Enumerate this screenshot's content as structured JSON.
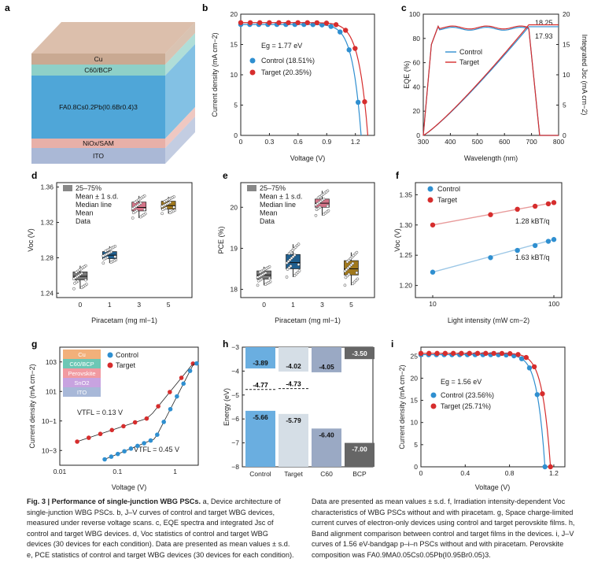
{
  "labels": {
    "a": "a",
    "b": "b",
    "c": "c",
    "d": "d",
    "e": "e",
    "f": "f",
    "g": "g",
    "h": "h",
    "i": "i"
  },
  "device": {
    "layers": [
      "Cu",
      "C60/BCP",
      "FA0.8Cs0.2Pb(I0.6Br0.4)3",
      "NiOx/SAM",
      "ITO"
    ],
    "colors": [
      "#c9a992",
      "#8ed0c8",
      "#4fa6d8",
      "#e8b0a8",
      "#aab8d6"
    ]
  },
  "chart_b": {
    "type": "line",
    "ylabel": "Current density (mA cm−2)",
    "xlabel": "Voltage (V)",
    "note": "Eg = 1.77 eV",
    "legend": [
      "Control (18.51%)",
      "Target (20.35%)"
    ],
    "x_ticks": [
      "0",
      "0.3",
      "0.6",
      "0.9",
      "1.2"
    ],
    "y_ticks": [
      "0",
      "5",
      "10",
      "15",
      "20"
    ],
    "series": [
      {
        "name": "Control",
        "color": "#2f8fd0",
        "jsc": 18.3,
        "voc": 1.26
      },
      {
        "name": "Target",
        "color": "#d62d2d",
        "jsc": 18.6,
        "voc": 1.33
      }
    ]
  },
  "chart_c": {
    "type": "line",
    "ylabel": "EQE (%)",
    "y2label": "Integrated Jsc (mA cm−2)",
    "xlabel": "Wavelength (nm)",
    "legend": [
      "Control",
      "Target"
    ],
    "annot": [
      "18.25",
      "17.93"
    ],
    "x_ticks": [
      "300",
      "400",
      "500",
      "600",
      "700",
      "800"
    ],
    "y_ticks": [
      "0",
      "20",
      "40",
      "60",
      "80",
      "100"
    ],
    "y2_ticks": [
      "0",
      "5",
      "10",
      "15",
      "20"
    ]
  },
  "chart_d": {
    "type": "box",
    "ylabel": "Voc (V)",
    "xlabel": "Piracetam (mg ml−1)",
    "categories": [
      "0",
      "1",
      "3",
      "5"
    ],
    "medians": [
      1.259,
      1.283,
      1.337,
      1.339
    ],
    "q1": [
      1.255,
      1.279,
      1.333,
      1.335
    ],
    "q3": [
      1.264,
      1.287,
      1.343,
      1.344
    ],
    "whisk_lo": [
      1.245,
      1.274,
      1.325,
      1.33
    ],
    "whisk_hi": [
      1.271,
      1.293,
      1.35,
      1.349
    ],
    "colors": [
      "#7a7a7a",
      "#1f5f8f",
      "#d47488",
      "#a0781c"
    ],
    "y_ticks": [
      "1.24",
      "1.28",
      "1.32",
      "1.36"
    ],
    "legend": [
      "25–75%",
      "Mean ± 1 s.d.",
      "Median line",
      "Mean",
      "Data"
    ]
  },
  "chart_e": {
    "type": "box",
    "ylabel": "PCE (%)",
    "xlabel": "Piracetam (mg ml−1)",
    "categories": [
      "0",
      "1",
      "3",
      "5"
    ],
    "medians": [
      18.35,
      18.65,
      20.1,
      18.5
    ],
    "q1": [
      18.25,
      18.5,
      20.0,
      18.35
    ],
    "q3": [
      18.45,
      18.85,
      20.2,
      18.7
    ],
    "whisk_lo": [
      18.1,
      18.3,
      19.8,
      18.1
    ],
    "whisk_hi": [
      18.55,
      19.1,
      20.4,
      18.9
    ],
    "colors": [
      "#7a7a7a",
      "#1f5f8f",
      "#d47488",
      "#a0781c"
    ],
    "y_ticks": [
      "18",
      "19",
      "20"
    ],
    "legend": [
      "25–75%",
      "Mean ± 1 s.d.",
      "Median line",
      "Mean",
      "Data"
    ]
  },
  "chart_f": {
    "type": "scatter",
    "ylabel": "Voc (V)",
    "xlabel": "Light intensity (mW cm−2)",
    "legend": [
      "Control",
      "Target"
    ],
    "annot": [
      "1.28 kBT/q",
      "1.63 kBT/q"
    ],
    "x_ticks": [
      "10",
      "100"
    ],
    "y_ticks": [
      "1.20",
      "1.25",
      "1.30",
      "1.35"
    ],
    "x": [
      10,
      20,
      30,
      40,
      50,
      60,
      70,
      80,
      90,
      100
    ],
    "series": [
      {
        "name": "Control",
        "values": [
          1.222,
          1.237,
          1.246,
          1.253,
          1.258,
          1.262,
          1.266,
          1.27,
          1.273,
          1.276
        ]
      },
      {
        "name": "Target",
        "values": [
          1.3,
          1.311,
          1.317,
          1.322,
          1.326,
          1.329,
          1.331,
          1.333,
          1.335,
          1.337
        ]
      }
    ]
  },
  "chart_g": {
    "type": "scatter",
    "ylabel": "Current density (mA cm−2)",
    "xlabel": "Voltage (V)",
    "legend": [
      "Control",
      "Target"
    ],
    "annot": [
      "VTFL = 0.13 V",
      "VTFL = 0.45 V"
    ],
    "stack": [
      "Cu",
      "C60/BCP",
      "Perovskite",
      "SnO2",
      "ITO"
    ],
    "x_ticks": [
      "0.01",
      "0.1",
      "1"
    ],
    "y_ticks": [
      "10−3",
      "10−1",
      "101",
      "103"
    ]
  },
  "chart_h": {
    "type": "bar",
    "ylabel": "Energy (eV)",
    "categories": [
      "Control",
      "Target",
      "C60",
      "BCP"
    ],
    "cbm": [
      -3.89,
      -4.02,
      -4.05,
      -3.5
    ],
    "vbm": [
      -5.66,
      -5.79,
      -6.4,
      -7.0
    ],
    "fermi": [
      -4.77,
      -4.73
    ],
    "labels": [
      "-3.89",
      "-4.02",
      "-4.05",
      "-3.50",
      "-5.66",
      "-5.79",
      "-6.40",
      "-7.00",
      "-4.77",
      "-4.73"
    ],
    "y_ticks": [
      "−3",
      "−4",
      "−5",
      "−6",
      "−7",
      "−8"
    ]
  },
  "chart_i": {
    "type": "line",
    "ylabel": "Current density (mA cm−2)",
    "xlabel": "Voltage (V)",
    "note": "Eg = 1.56 eV",
    "legend": [
      "Control (23.56%)",
      "Target (25.71%)"
    ],
    "x_ticks": [
      "0",
      "0.4",
      "0.8",
      "1.2"
    ],
    "y_ticks": [
      "0",
      "5",
      "10",
      "15",
      "20",
      "25"
    ],
    "series": [
      {
        "name": "Control",
        "color": "#2f8fd0",
        "jsc": 25.3,
        "voc": 1.12
      },
      {
        "name": "Target",
        "color": "#d62d2d",
        "jsc": 25.6,
        "voc": 1.17
      }
    ]
  },
  "caption": {
    "fig": "Fig. 3 | Performance of single-junction WBG PSCs.",
    "left": " a, Device architecture of single-junction WBG PSCs. b, J–V curves of control and target WBG devices, measured under reverse voltage scans. c, EQE spectra and integrated Jsc of control and target WBG devices. d, Voc statistics of control and target WBG devices (30 devices for each condition). Data are presented as mean values ± s.d. e, PCE statistics of control and target WBG devices (30 devices for each condition).",
    "right": "Data are presented as mean values ± s.d. f, Irradiation intensity-dependent Voc characteristics of WBG PSCs without and with piracetam. g, Space charge-limited current curves of electron-only devices using control and target perovskite films. h, Band alignment comparison between control and target films in the devices. i, J–V curves of 1.56 eV-bandgap p–i–n PSCs without and with piracetam. Perovskite composition was FA0.9MA0.05Cs0.05Pb(I0.95Br0.05)3."
  }
}
